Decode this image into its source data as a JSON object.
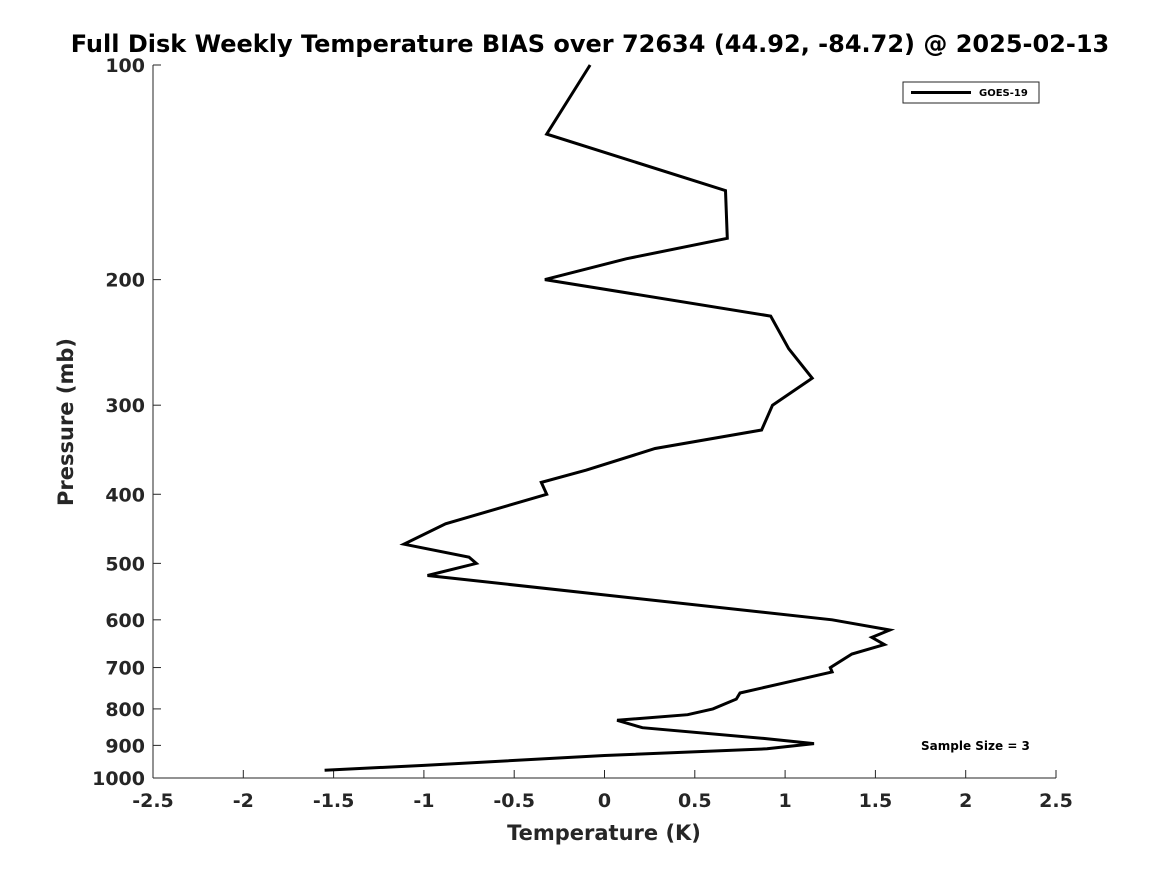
{
  "chart_data": {
    "type": "line",
    "title": "Full Disk Weekly Temperature BIAS over 72634 (44.92, -84.72) @ 2025-02-13",
    "xlabel": "Temperature (K)",
    "ylabel": "Pressure (mb)",
    "xlim": [
      -2.5,
      2.5
    ],
    "ylim": [
      1000,
      100
    ],
    "yscale": "log",
    "grid": false,
    "legend_position": "top-right",
    "x_ticks": [
      -2.5,
      -2,
      -1.5,
      -1,
      -0.5,
      0,
      0.5,
      1,
      1.5,
      2,
      2.5
    ],
    "x_tick_labels": [
      "-2.5",
      "-2",
      "-1.5",
      "-1",
      "-0.5",
      "0",
      "0.5",
      "1",
      "1.5",
      "2",
      "2.5"
    ],
    "y_ticks": [
      100,
      200,
      300,
      400,
      500,
      600,
      700,
      800,
      900,
      1000
    ],
    "y_tick_labels": [
      "100",
      "200",
      "300",
      "400",
      "500",
      "600",
      "700",
      "800",
      "900",
      "1000"
    ],
    "annotation": "Sample Size = 3",
    "series": [
      {
        "name": "GOES-19",
        "color": "#000000",
        "points": [
          {
            "x": -0.08,
            "p": 100
          },
          {
            "x": -0.32,
            "p": 125
          },
          {
            "x": 0.67,
            "p": 150
          },
          {
            "x": 0.68,
            "p": 175
          },
          {
            "x": 0.12,
            "p": 187
          },
          {
            "x": -0.33,
            "p": 200
          },
          {
            "x": 0.92,
            "p": 225
          },
          {
            "x": 1.02,
            "p": 250
          },
          {
            "x": 1.15,
            "p": 275
          },
          {
            "x": 0.93,
            "p": 300
          },
          {
            "x": 0.87,
            "p": 325
          },
          {
            "x": 0.28,
            "p": 345
          },
          {
            "x": -0.1,
            "p": 370
          },
          {
            "x": -0.35,
            "p": 385
          },
          {
            "x": -0.32,
            "p": 400
          },
          {
            "x": -0.88,
            "p": 440
          },
          {
            "x": -1.11,
            "p": 470
          },
          {
            "x": -0.75,
            "p": 490
          },
          {
            "x": -0.71,
            "p": 500
          },
          {
            "x": -0.98,
            "p": 520
          },
          {
            "x": 1.26,
            "p": 600
          },
          {
            "x": 1.58,
            "p": 620
          },
          {
            "x": 1.48,
            "p": 635
          },
          {
            "x": 1.55,
            "p": 650
          },
          {
            "x": 1.37,
            "p": 670
          },
          {
            "x": 1.25,
            "p": 700
          },
          {
            "x": 1.26,
            "p": 710
          },
          {
            "x": 1.0,
            "p": 735
          },
          {
            "x": 0.75,
            "p": 760
          },
          {
            "x": 0.73,
            "p": 775
          },
          {
            "x": 0.6,
            "p": 800
          },
          {
            "x": 0.46,
            "p": 815
          },
          {
            "x": 0.07,
            "p": 830
          },
          {
            "x": 0.21,
            "p": 850
          },
          {
            "x": 0.88,
            "p": 880
          },
          {
            "x": 1.16,
            "p": 895
          },
          {
            "x": 0.9,
            "p": 910
          },
          {
            "x": 0.0,
            "p": 930
          },
          {
            "x": -1.0,
            "p": 960
          },
          {
            "x": -1.55,
            "p": 975
          }
        ]
      }
    ]
  }
}
